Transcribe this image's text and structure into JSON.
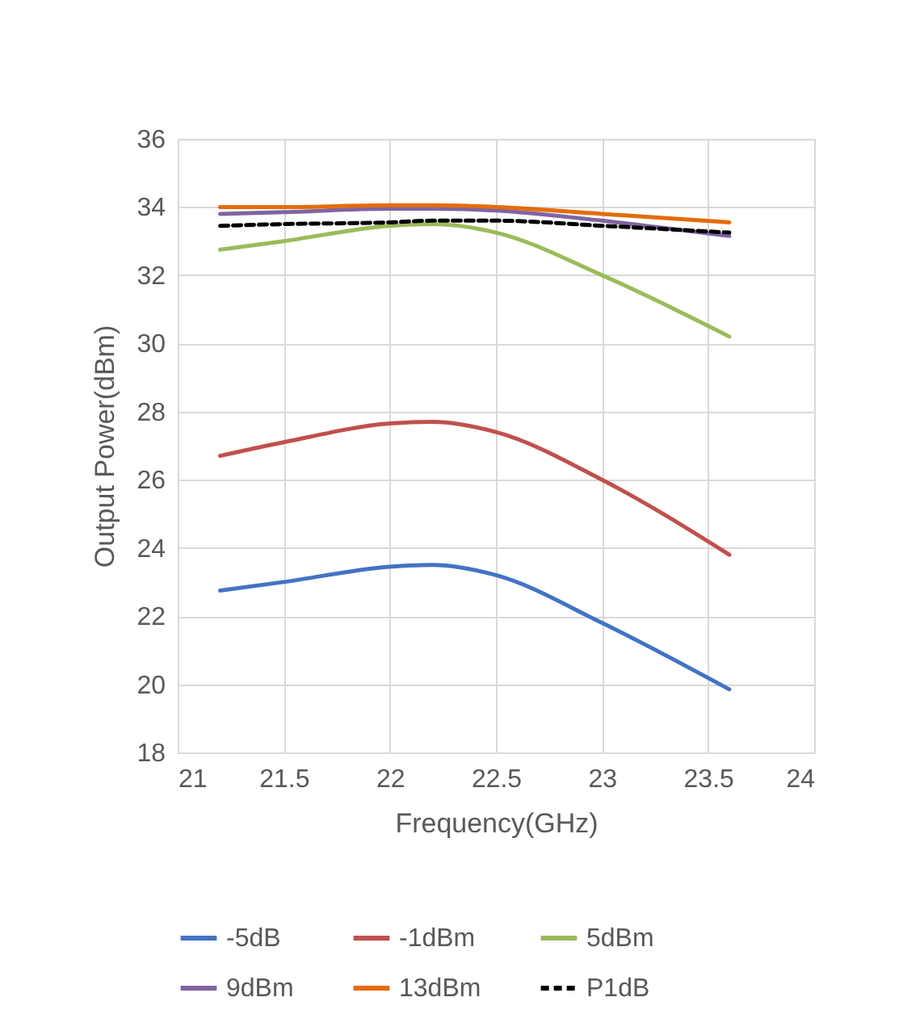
{
  "chart_data": {
    "type": "line",
    "xlabel": "Frequency(GHz)",
    "ylabel": "Output Power(dBm)",
    "x": [
      21.2,
      21.5,
      22,
      22.2,
      22.5,
      23,
      23.6
    ],
    "xlim": [
      21,
      24
    ],
    "xticks": [
      21,
      21.5,
      22,
      22.5,
      23,
      23.5,
      24
    ],
    "ylim": [
      18,
      36
    ],
    "yticks": [
      18,
      20,
      22,
      24,
      26,
      28,
      30,
      32,
      34,
      36
    ],
    "grid": true,
    "legend": "bottom",
    "marker": "none",
    "series": [
      {
        "name": "-5dB",
        "color": "#4472c4",
        "values": [
          22.75,
          23.0,
          23.45,
          23.5,
          23.2,
          21.8,
          19.85
        ]
      },
      {
        "name": "-1dBm",
        "color": "#c0504d",
        "values": [
          26.7,
          27.1,
          27.65,
          27.7,
          27.4,
          26.0,
          23.8
        ]
      },
      {
        "name": "5dBm",
        "color": "#9bbb59",
        "values": [
          32.75,
          33.0,
          33.45,
          33.5,
          33.25,
          32.0,
          30.2
        ]
      },
      {
        "name": "9dBm",
        "color": "#8064a2",
        "values": [
          33.8,
          33.85,
          33.95,
          33.95,
          33.9,
          33.6,
          33.15
        ]
      },
      {
        "name": "13dBm",
        "color": "#e46c0a",
        "values": [
          34.0,
          34.0,
          34.05,
          34.05,
          34.0,
          33.8,
          33.55
        ]
      },
      {
        "name": "P1dB",
        "color": "#000000",
        "line_style": "dashed",
        "values": [
          33.45,
          33.5,
          33.55,
          33.6,
          33.6,
          33.45,
          33.25
        ]
      }
    ]
  }
}
